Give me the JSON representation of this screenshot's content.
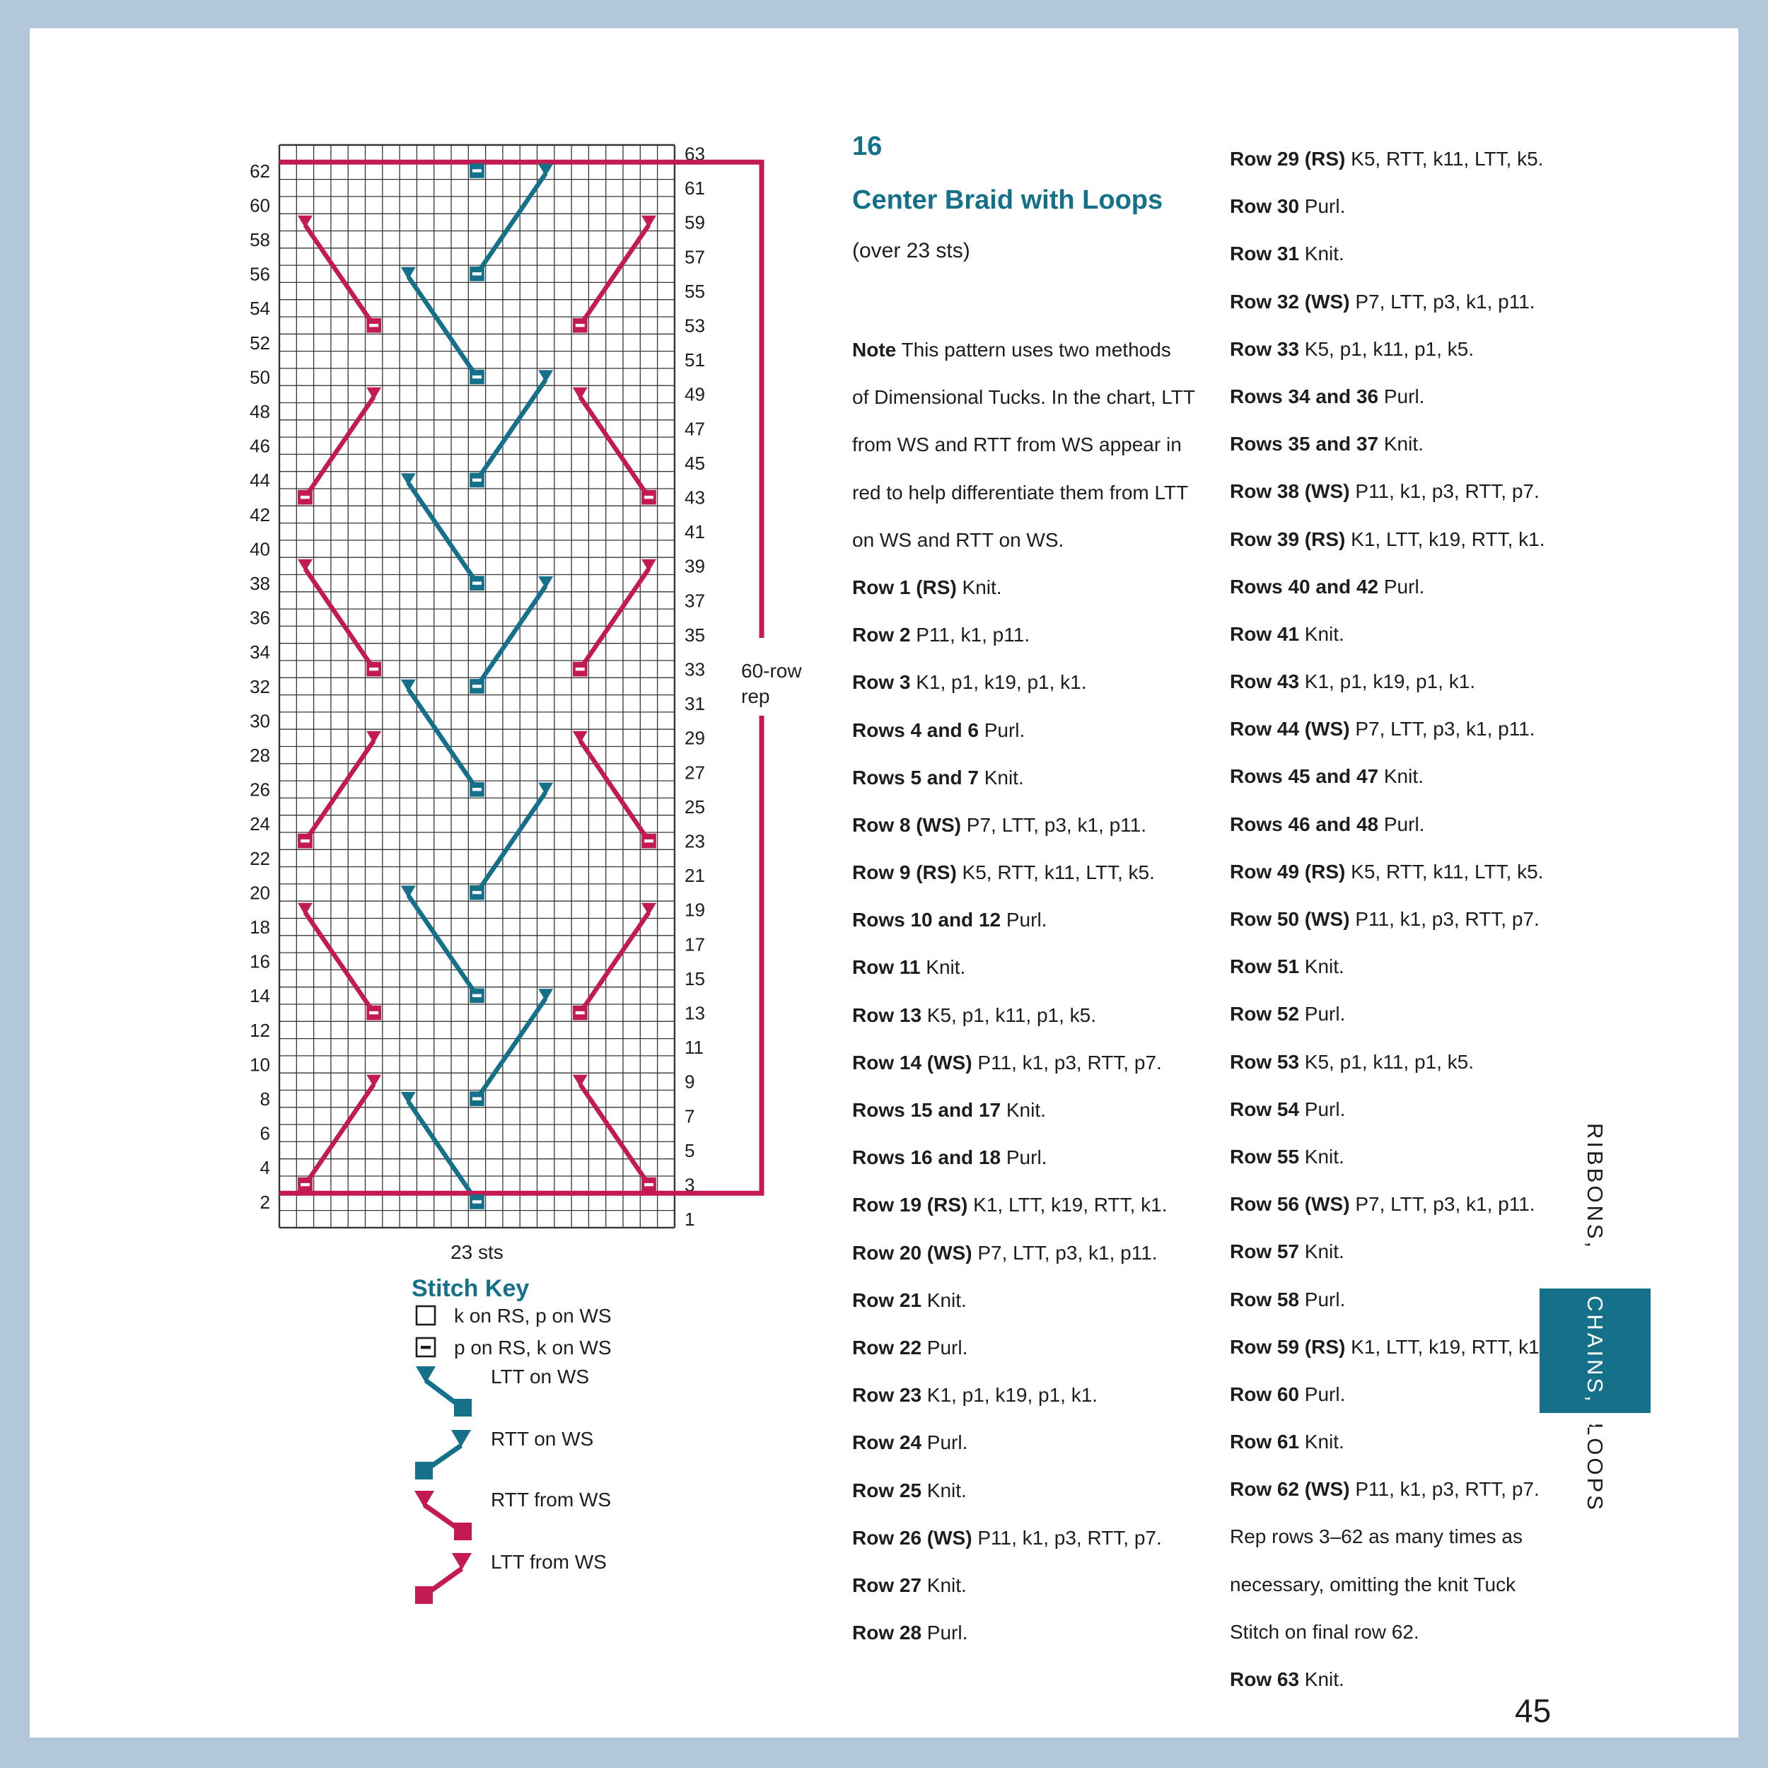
{
  "colors": {
    "teal": "#15708a",
    "red": "#c41a52",
    "frame_blue": "#b2c7da",
    "text": "#1d1d1b",
    "grid": "#363636"
  },
  "header": {
    "number": "16",
    "title": "Center Braid with Loops",
    "subtitle": "(over 23 sts)"
  },
  "columns": {
    "middle": {
      "lines": [
        {
          "b": "Note",
          "t": "This pattern uses two methods"
        },
        {
          "b": "",
          "t": "of Dimensional Tucks. In the chart, LTT"
        },
        {
          "b": "",
          "t": "from WS and RTT from WS appear in"
        },
        {
          "b": "",
          "t": "red to help differentiate them from LTT"
        },
        {
          "b": "",
          "t": "on WS and RTT on WS."
        },
        {
          "b": "Row 1 (RS)",
          "t": "Knit."
        },
        {
          "b": "Row 2",
          "t": "P11, k1, p11."
        },
        {
          "b": "Row 3",
          "t": "K1, p1, k19, p1, k1."
        },
        {
          "b": "Rows 4 and 6",
          "t": "Purl."
        },
        {
          "b": "Rows 5 and 7",
          "t": "Knit."
        },
        {
          "b": "Row 8 (WS)",
          "t": "P7, LTT, p3, k1, p11."
        },
        {
          "b": "Row 9 (RS)",
          "t": "K5, RTT, k11, LTT, k5."
        },
        {
          "b": "Rows 10 and 12",
          "t": "Purl."
        },
        {
          "b": "Row 11",
          "t": "Knit."
        },
        {
          "b": "Row 13",
          "t": "K5, p1, k11, p1, k5."
        },
        {
          "b": "Row 14 (WS)",
          "t": "P11, k1, p3, RTT, p7."
        },
        {
          "b": "Rows 15 and 17",
          "t": "Knit."
        },
        {
          "b": "Rows 16 and 18",
          "t": "Purl."
        },
        {
          "b": "Row 19 (RS)",
          "t": "K1, LTT, k19, RTT, k1."
        },
        {
          "b": "Row 20 (WS)",
          "t": "P7, LTT, p3, k1, p11."
        },
        {
          "b": "Row 21",
          "t": "Knit."
        },
        {
          "b": "Row 22",
          "t": "Purl."
        },
        {
          "b": "Row 23",
          "t": "K1, p1, k19, p1, k1."
        },
        {
          "b": "Row 24",
          "t": "Purl."
        },
        {
          "b": "Row 25",
          "t": "Knit."
        },
        {
          "b": "Row 26 (WS)",
          "t": "P11, k1, p3, RTT, p7."
        },
        {
          "b": "Row 27",
          "t": "Knit."
        },
        {
          "b": "Row 28",
          "t": "Purl."
        }
      ]
    },
    "right": {
      "lines": [
        {
          "b": "Row 29 (RS)",
          "t": "K5, RTT, k11, LTT, k5."
        },
        {
          "b": "Row 30",
          "t": "Purl."
        },
        {
          "b": "Row 31",
          "t": "Knit."
        },
        {
          "b": "Row 32 (WS)",
          "t": "P7, LTT, p3, k1, p11."
        },
        {
          "b": "Row 33",
          "t": "K5, p1, k11, p1, k5."
        },
        {
          "b": "Rows 34 and 36",
          "t": "Purl."
        },
        {
          "b": "Rows 35 and 37",
          "t": "Knit."
        },
        {
          "b": "Row 38 (WS)",
          "t": "P11, k1, p3, RTT, p7."
        },
        {
          "b": "Row 39 (RS)",
          "t": "K1, LTT, k19, RTT, k1."
        },
        {
          "b": "Rows 40 and 42",
          "t": "Purl."
        },
        {
          "b": "Row 41",
          "t": "Knit."
        },
        {
          "b": "Row 43",
          "t": "K1, p1, k19, p1, k1."
        },
        {
          "b": "Row 44 (WS)",
          "t": "P7, LTT, p3, k1, p11."
        },
        {
          "b": "Rows 45 and 47",
          "t": "Knit."
        },
        {
          "b": "Rows 46 and 48",
          "t": "Purl."
        },
        {
          "b": "Row 49 (RS)",
          "t": "K5, RTT, k11, LTT, k5."
        },
        {
          "b": "Row 50 (WS)",
          "t": "P11, k1, p3, RTT, p7."
        },
        {
          "b": "Row 51",
          "t": "Knit."
        },
        {
          "b": "Row 52",
          "t": "Purl."
        },
        {
          "b": "Row 53",
          "t": "K5, p1, k11, p1, k5."
        },
        {
          "b": "Row 54",
          "t": "Purl."
        },
        {
          "b": "Row 55",
          "t": "Knit."
        },
        {
          "b": "Row 56 (WS)",
          "t": "P7, LTT, p3, k1, p11."
        },
        {
          "b": "Row 57",
          "t": "Knit."
        },
        {
          "b": "Row 58",
          "t": "Purl."
        },
        {
          "b": "Row 59 (RS)",
          "t": "K1, LTT, k19, RTT, k1."
        },
        {
          "b": "Row 60",
          "t": "Purl."
        },
        {
          "b": "Row 61",
          "t": "Knit."
        },
        {
          "b": "Row 62 (WS)",
          "t": "P11, k1, p3, RTT, p7."
        },
        {
          "b": "",
          "t": "Rep rows 3–62 as many times as"
        },
        {
          "b": "",
          "t": "necessary, omitting the knit Tuck"
        },
        {
          "b": "",
          "t": "Stitch on final row 62."
        },
        {
          "b": "Row 63",
          "t": "Knit."
        }
      ]
    }
  },
  "chart": {
    "cols": 23,
    "rows": 63,
    "stitches_label": "23 sts",
    "rep_label": [
      "60-row",
      "rep"
    ],
    "rep_bracket_rows": [
      62,
      2
    ],
    "left_numbers": [
      62,
      60,
      58,
      56,
      54,
      52,
      50,
      48,
      46,
      44,
      42,
      40,
      38,
      36,
      34,
      32,
      30,
      28,
      26,
      24,
      22,
      20,
      18,
      16,
      14,
      12,
      10,
      8,
      6,
      4,
      2
    ],
    "right_numbers": [
      63,
      61,
      59,
      57,
      55,
      53,
      51,
      49,
      47,
      45,
      43,
      41,
      39,
      37,
      35,
      33,
      31,
      29,
      27,
      25,
      23,
      21,
      19,
      17,
      15,
      13,
      11,
      9,
      7,
      5,
      3,
      1
    ],
    "tucks": [
      {
        "color": "teal",
        "arrow": [
          8,
          8
        ],
        "square": [
          2,
          12
        ]
      },
      {
        "color": "teal",
        "arrow": [
          14,
          16
        ],
        "square": [
          8,
          12
        ]
      },
      {
        "color": "teal",
        "arrow": [
          20,
          8
        ],
        "square": [
          14,
          12
        ]
      },
      {
        "color": "teal",
        "arrow": [
          26,
          16
        ],
        "square": [
          20,
          12
        ]
      },
      {
        "color": "teal",
        "arrow": [
          32,
          8
        ],
        "square": [
          26,
          12
        ]
      },
      {
        "color": "teal",
        "arrow": [
          38,
          16
        ],
        "square": [
          32,
          12
        ]
      },
      {
        "color": "teal",
        "arrow": [
          44,
          8
        ],
        "square": [
          38,
          12
        ]
      },
      {
        "color": "teal",
        "arrow": [
          50,
          16
        ],
        "square": [
          44,
          12
        ]
      },
      {
        "color": "teal",
        "arrow": [
          56,
          8
        ],
        "square": [
          50,
          12
        ]
      },
      {
        "color": "teal",
        "arrow": [
          62,
          16
        ],
        "square": [
          56,
          12
        ]
      },
      {
        "color": "red",
        "arrow": [
          9,
          6
        ],
        "square": [
          3,
          2
        ]
      },
      {
        "color": "red",
        "arrow": [
          9,
          18
        ],
        "square": [
          3,
          22
        ]
      },
      {
        "color": "red",
        "arrow": [
          19,
          2
        ],
        "square": [
          13,
          6
        ]
      },
      {
        "color": "red",
        "arrow": [
          19,
          22
        ],
        "square": [
          13,
          18
        ]
      },
      {
        "color": "red",
        "arrow": [
          29,
          6
        ],
        "square": [
          23,
          2
        ]
      },
      {
        "color": "red",
        "arrow": [
          29,
          18
        ],
        "square": [
          23,
          22
        ]
      },
      {
        "color": "red",
        "arrow": [
          39,
          2
        ],
        "square": [
          33,
          6
        ]
      },
      {
        "color": "red",
        "arrow": [
          39,
          22
        ],
        "square": [
          33,
          18
        ]
      },
      {
        "color": "red",
        "arrow": [
          49,
          6
        ],
        "square": [
          43,
          2
        ]
      },
      {
        "color": "red",
        "arrow": [
          49,
          18
        ],
        "square": [
          43,
          22
        ]
      },
      {
        "color": "red",
        "arrow": [
          59,
          2
        ],
        "square": [
          53,
          6
        ]
      },
      {
        "color": "red",
        "arrow": [
          59,
          22
        ],
        "square": [
          53,
          18
        ]
      }
    ],
    "lone_squares": [
      {
        "color": "teal",
        "row": 62,
        "col": 12
      }
    ]
  },
  "stitch_key": {
    "title": "Stitch Key",
    "items": [
      {
        "type": "knit",
        "label": "k on RS, p on WS"
      },
      {
        "type": "purl",
        "label": "p on RS, k on WS"
      },
      {
        "type": "ltt-on-ws",
        "label": "LTT on WS",
        "color": "teal"
      },
      {
        "type": "rtt-on-ws",
        "label": "RTT on WS",
        "color": "teal"
      },
      {
        "type": "rtt-from-ws",
        "label": "RTT from WS",
        "color": "red"
      },
      {
        "type": "ltt-from-ws",
        "label": "LTT from WS",
        "color": "red"
      }
    ]
  },
  "sidebar": {
    "top": "RIBBONS,",
    "middle": "CHAINS, &",
    "bottom": "LOOPS"
  },
  "page_number": "45"
}
